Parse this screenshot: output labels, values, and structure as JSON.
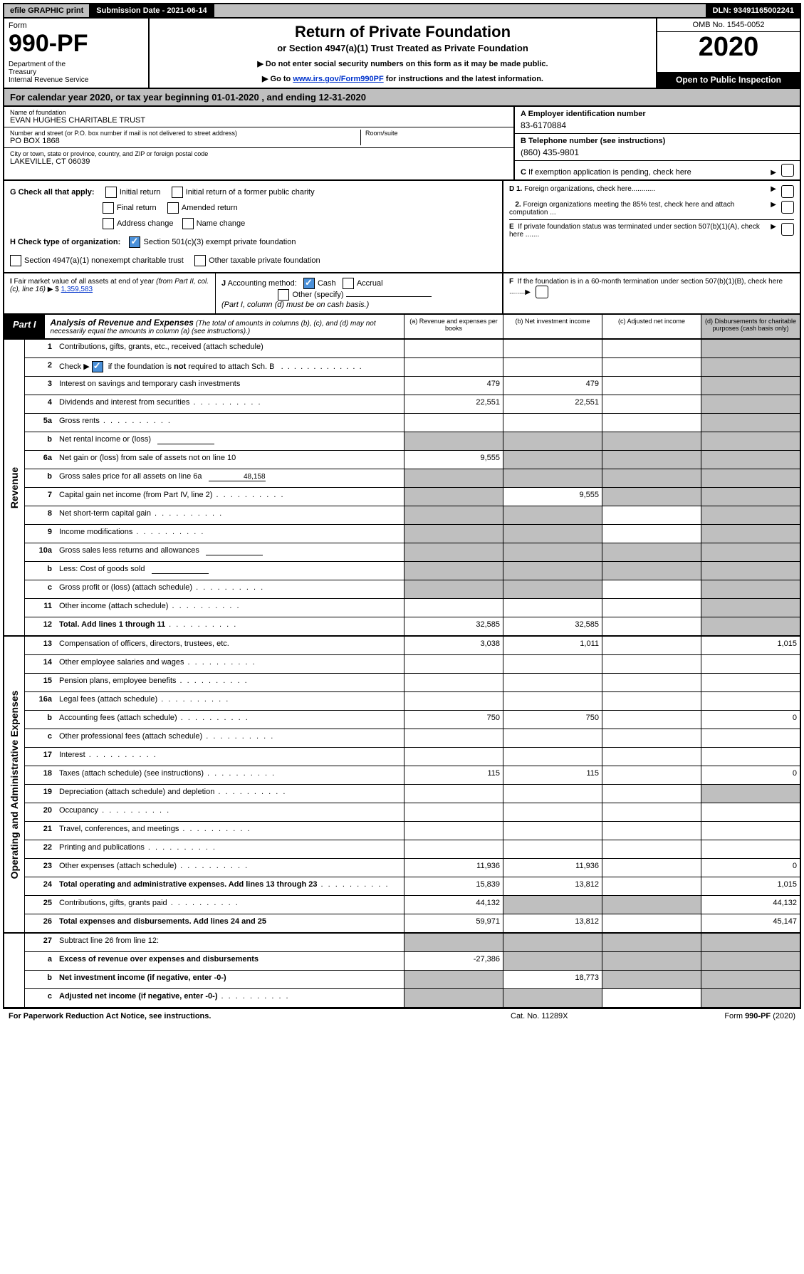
{
  "topbar": {
    "efile": "efile GRAPHIC print",
    "submission": "Submission Date - 2021-06-14",
    "dln": "DLN: 93491165002241"
  },
  "header": {
    "form_label": "Form",
    "form_number": "990-PF",
    "dept": "Department of the Treasury\nInternal Revenue Service",
    "title": "Return of Private Foundation",
    "subtitle": "or Section 4947(a)(1) Trust Treated as Private Foundation",
    "instr1": "▶ Do not enter social security numbers on this form as it may be made public.",
    "instr2_prefix": "▶ Go to ",
    "instr2_link": "www.irs.gov/Form990PF",
    "instr2_suffix": " for instructions and the latest information.",
    "omb": "OMB No. 1545-0052",
    "year": "2020",
    "open": "Open to Public Inspection"
  },
  "calyear": "For calendar year 2020, or tax year beginning 01-01-2020           , and ending 12-31-2020",
  "entity": {
    "name_lbl": "Name of foundation",
    "name": "EVAN HUGHES CHARITABLE TRUST",
    "street_lbl": "Number and street (or P.O. box number if mail is not delivered to street address)",
    "street": "PO BOX 1868",
    "room_lbl": "Room/suite",
    "city_lbl": "City or town, state or province, country, and ZIP or foreign postal code",
    "city": "LAKEVILLE, CT  06039",
    "a_lbl": "A Employer identification number",
    "a_val": "83-6170884",
    "b_lbl": "B Telephone number (see instructions)",
    "b_val": "(860) 435-9801",
    "c_lbl": "C If exemption application is pending, check here"
  },
  "g": {
    "label": "G Check all that apply:",
    "opts": {
      "initial": "Initial return",
      "initial_former": "Initial return of a former public charity",
      "final": "Final return",
      "amended": "Amended return",
      "addr": "Address change",
      "name": "Name change"
    }
  },
  "h": {
    "label": "H Check type of organization:",
    "opt1": "Section 501(c)(3) exempt private foundation",
    "opt2": "Section 4947(a)(1) nonexempt charitable trust",
    "opt3": "Other taxable private foundation",
    "opt1_checked": true
  },
  "d": {
    "d1": "D 1. Foreign organizations, check here............",
    "d2": "2. Foreign organizations meeting the 85% test, check here and attach computation ...",
    "e": "E  If private foundation status was terminated under section 507(b)(1)(A), check here .......",
    "f": "F  If the foundation is in a 60-month termination under section 507(b)(1)(B), check here ........"
  },
  "i": {
    "label": "I Fair market value of all assets at end of year (from Part II, col. (c), line 16)",
    "dollar_prefix": "▶ $",
    "value": "1,359,583"
  },
  "j": {
    "label": "J Accounting method:",
    "cash": "Cash",
    "accrual": "Accrual",
    "other": "Other (specify)",
    "note": "(Part I, column (d) must be on cash basis.)",
    "cash_checked": true
  },
  "part1": {
    "label": "Part I",
    "title": "Analysis of Revenue and Expenses",
    "note": "(The total of amounts in columns (b), (c), and (d) may not necessarily equal the amounts in column (a) (see instructions).)",
    "col_a": "(a)   Revenue and expenses per books",
    "col_b": "(b)   Net investment income",
    "col_c": "(c)   Adjusted net income",
    "col_d": "(d)   Disbursements for charitable purposes (cash basis only)"
  },
  "side_labels": {
    "revenue": "Revenue",
    "expenses": "Operating and Administrative Expenses"
  },
  "rows": [
    {
      "n": "1",
      "t": "Contributions, gifts, grants, etc., received (attach schedule)",
      "a": "",
      "b": "",
      "c": "",
      "d": "",
      "ds": true
    },
    {
      "n": "2",
      "t": "Check ▶ ☑ if the foundation is not required to attach Sch. B",
      "raw": true,
      "a": "",
      "b": "",
      "c": "",
      "d": "",
      "ds": true,
      "checked": true
    },
    {
      "n": "3",
      "t": "Interest on savings and temporary cash investments",
      "a": "479",
      "b": "479",
      "c": "",
      "d": "",
      "ds": true
    },
    {
      "n": "4",
      "t": "Dividends and interest from securities",
      "a": "22,551",
      "b": "22,551",
      "c": "",
      "d": "",
      "ds": true,
      "dots": true
    },
    {
      "n": "5a",
      "t": "Gross rents",
      "a": "",
      "b": "",
      "c": "",
      "d": "",
      "ds": true,
      "dots": true
    },
    {
      "n": "b",
      "t": "Net rental income or (loss)",
      "a": "",
      "b": "",
      "c": "",
      "d": "",
      "sub": true,
      "as": true,
      "bs": true,
      "cs": true,
      "ds": true
    },
    {
      "n": "6a",
      "t": "Net gain or (loss) from sale of assets not on line 10",
      "a": "9,555",
      "b": "",
      "c": "",
      "d": "",
      "bs": true,
      "cs": true,
      "ds": true
    },
    {
      "n": "b",
      "t": "Gross sales price for all assets on line 6a",
      "sub": true,
      "subval": "48,158",
      "a": "",
      "b": "",
      "c": "",
      "d": "",
      "as": true,
      "bs": true,
      "cs": true,
      "ds": true
    },
    {
      "n": "7",
      "t": "Capital gain net income (from Part IV, line 2)",
      "a": "",
      "b": "9,555",
      "c": "",
      "d": "",
      "as": true,
      "cs": true,
      "ds": true,
      "dots": true
    },
    {
      "n": "8",
      "t": "Net short-term capital gain",
      "a": "",
      "b": "",
      "c": "",
      "d": "",
      "as": true,
      "bs": true,
      "ds": true,
      "dots": true
    },
    {
      "n": "9",
      "t": "Income modifications",
      "a": "",
      "b": "",
      "c": "",
      "d": "",
      "as": true,
      "bs": true,
      "ds": true,
      "dots": true
    },
    {
      "n": "10a",
      "t": "Gross sales less returns and allowances",
      "sub": true,
      "a": "",
      "b": "",
      "c": "",
      "d": "",
      "as": true,
      "bs": true,
      "cs": true,
      "ds": true
    },
    {
      "n": "b",
      "t": "Less: Cost of goods sold",
      "sub": true,
      "a": "",
      "b": "",
      "c": "",
      "d": "",
      "as": true,
      "bs": true,
      "cs": true,
      "ds": true,
      "dots": true
    },
    {
      "n": "c",
      "t": "Gross profit or (loss) (attach schedule)",
      "a": "",
      "b": "",
      "c": "",
      "d": "",
      "as": true,
      "bs": true,
      "ds": true,
      "dots": true
    },
    {
      "n": "11",
      "t": "Other income (attach schedule)",
      "a": "",
      "b": "",
      "c": "",
      "d": "",
      "ds": true,
      "dots": true
    },
    {
      "n": "12",
      "t": "Total. Add lines 1 through 11",
      "bold": true,
      "a": "32,585",
      "b": "32,585",
      "c": "",
      "d": "",
      "ds": true,
      "dots": true
    }
  ],
  "exp_rows": [
    {
      "n": "13",
      "t": "Compensation of officers, directors, trustees, etc.",
      "a": "3,038",
      "b": "1,011",
      "c": "",
      "d": "1,015"
    },
    {
      "n": "14",
      "t": "Other employee salaries and wages",
      "a": "",
      "b": "",
      "c": "",
      "d": "",
      "dots": true
    },
    {
      "n": "15",
      "t": "Pension plans, employee benefits",
      "a": "",
      "b": "",
      "c": "",
      "d": "",
      "dots": true
    },
    {
      "n": "16a",
      "t": "Legal fees (attach schedule)",
      "a": "",
      "b": "",
      "c": "",
      "d": "",
      "dots": true
    },
    {
      "n": "b",
      "t": "Accounting fees (attach schedule)",
      "a": "750",
      "b": "750",
      "c": "",
      "d": "0",
      "dots": true
    },
    {
      "n": "c",
      "t": "Other professional fees (attach schedule)",
      "a": "",
      "b": "",
      "c": "",
      "d": "",
      "dots": true
    },
    {
      "n": "17",
      "t": "Interest",
      "a": "",
      "b": "",
      "c": "",
      "d": "",
      "dots": true
    },
    {
      "n": "18",
      "t": "Taxes (attach schedule) (see instructions)",
      "a": "115",
      "b": "115",
      "c": "",
      "d": "0",
      "dots": true
    },
    {
      "n": "19",
      "t": "Depreciation (attach schedule) and depletion",
      "a": "",
      "b": "",
      "c": "",
      "d": "",
      "ds": true,
      "dots": true
    },
    {
      "n": "20",
      "t": "Occupancy",
      "a": "",
      "b": "",
      "c": "",
      "d": "",
      "dots": true
    },
    {
      "n": "21",
      "t": "Travel, conferences, and meetings",
      "a": "",
      "b": "",
      "c": "",
      "d": "",
      "dots": true
    },
    {
      "n": "22",
      "t": "Printing and publications",
      "a": "",
      "b": "",
      "c": "",
      "d": "",
      "dots": true
    },
    {
      "n": "23",
      "t": "Other expenses (attach schedule)",
      "a": "11,936",
      "b": "11,936",
      "c": "",
      "d": "0",
      "dots": true
    },
    {
      "n": "24",
      "t": "Total operating and administrative expenses. Add lines 13 through 23",
      "bold": true,
      "a": "15,839",
      "b": "13,812",
      "c": "",
      "d": "1,015",
      "dots": true
    },
    {
      "n": "25",
      "t": "Contributions, gifts, grants paid",
      "a": "44,132",
      "b": "",
      "c": "",
      "d": "44,132",
      "bs": true,
      "cs": true,
      "dots": true
    },
    {
      "n": "26",
      "t": "Total expenses and disbursements. Add lines 24 and 25",
      "bold": true,
      "a": "59,971",
      "b": "13,812",
      "c": "",
      "d": "45,147"
    }
  ],
  "net_rows": [
    {
      "n": "27",
      "t": "Subtract line 26 from line 12:",
      "a": "",
      "b": "",
      "c": "",
      "d": "",
      "as": true,
      "bs": true,
      "cs": true,
      "ds": true
    },
    {
      "n": "a",
      "t": "Excess of revenue over expenses and disbursements",
      "bold": true,
      "a": "-27,386",
      "b": "",
      "c": "",
      "d": "",
      "bs": true,
      "cs": true,
      "ds": true
    },
    {
      "n": "b",
      "t": "Net investment income (if negative, enter -0-)",
      "bold": true,
      "a": "",
      "b": "18,773",
      "c": "",
      "d": "",
      "as": true,
      "cs": true,
      "ds": true
    },
    {
      "n": "c",
      "t": "Adjusted net income (if negative, enter -0-)",
      "bold": true,
      "a": "",
      "b": "",
      "c": "",
      "d": "",
      "as": true,
      "bs": true,
      "ds": true,
      "dots": true
    }
  ],
  "footer": {
    "left": "For Paperwork Reduction Act Notice, see instructions.",
    "center": "Cat. No. 11289X",
    "right": "Form 990-PF (2020)"
  },
  "colors": {
    "shade": "#bfbfbf",
    "link": "#0033cc",
    "check_bg": "#4a90d9"
  }
}
